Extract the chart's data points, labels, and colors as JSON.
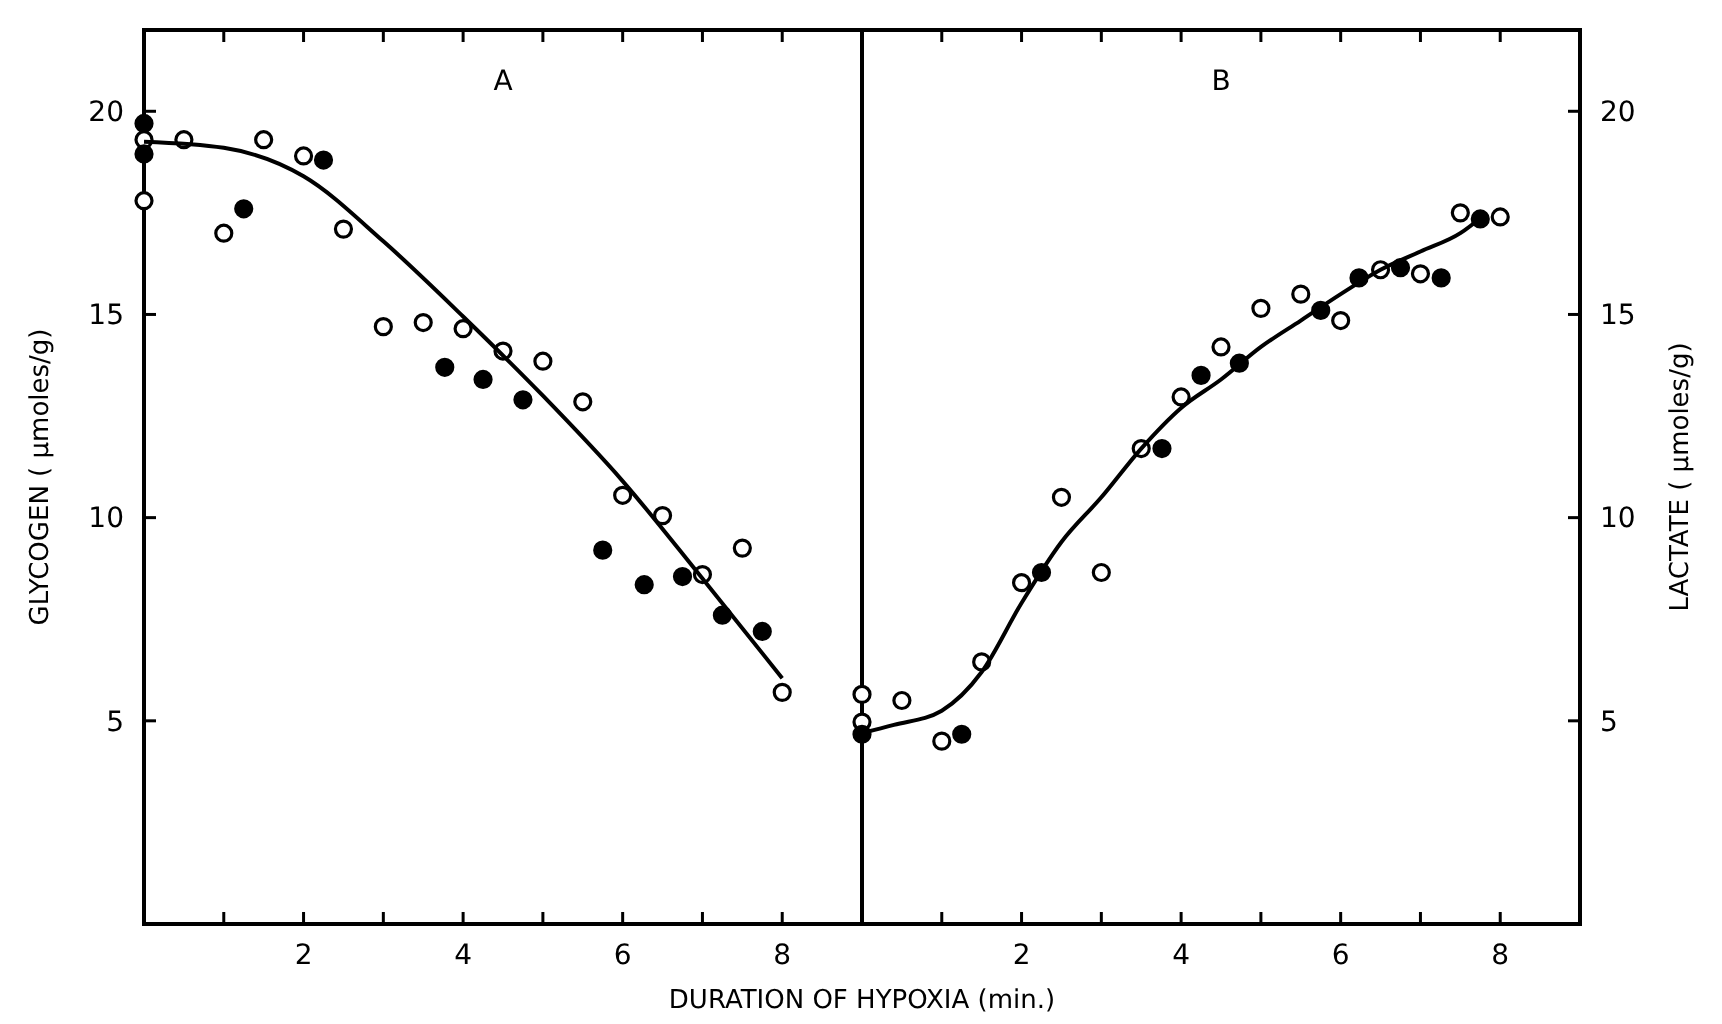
{
  "chart_data": [
    {
      "type": "scatter",
      "xlabel": "DURATION OF HYPOXIA (min.)",
      "ylabel": "GLYCOGEN ( µmoles/g)",
      "annotations": [
        "A"
      ],
      "xlim": [
        0,
        9
      ],
      "xticks": [
        {
          "value": 1,
          "label": null
        },
        2,
        {
          "value": 3,
          "label": null
        },
        4,
        {
          "value": 5,
          "label": null
        },
        6,
        {
          "value": 7,
          "label": null
        },
        8
      ],
      "ylim": [
        0,
        22
      ],
      "yticks": [
        5,
        10,
        15,
        20
      ],
      "series": [
        {
          "color": "#ffffff",
          "marker": "circle",
          "x": [
            0,
            0,
            0.5,
            1,
            1.5,
            2,
            2.5,
            3,
            3.5,
            4,
            4.5,
            5,
            5.5,
            6,
            6.5,
            7,
            7.5,
            8
          ],
          "values": [
            19.3,
            17.8,
            19.3,
            17,
            19.3,
            18.9,
            17.1,
            14.7,
            14.8,
            14.65,
            14.1,
            13.85,
            12.85,
            10.55,
            10.05,
            8.6,
            9.25,
            5.7
          ]
        },
        {
          "color": "#000000",
          "marker": "circle",
          "x": [
            0,
            0,
            1.25,
            2.25,
            3.77,
            4.25,
            4.75,
            5.75,
            6.27,
            6.75,
            7.25,
            7.75
          ],
          "values": [
            19.7,
            18.95,
            17.6,
            18.8,
            13.7,
            13.4,
            12.9,
            9.2,
            8.35,
            8.55,
            7.6,
            7.2
          ]
        },
        {
          "type": "line",
          "color": "#000000",
          "x": [
            0,
            1,
            2,
            3,
            4,
            5,
            6,
            7,
            8
          ],
          "values": [
            19.25,
            19.1,
            18.4,
            16.8,
            14.95,
            13,
            10.9,
            8.5,
            6.05
          ]
        }
      ]
    },
    {
      "type": "scatter",
      "y2label": "LACTATE ( µmoles/g)",
      "annotations": [
        "B"
      ],
      "xlim": [
        0,
        9
      ],
      "xticks": [
        {
          "value": 1,
          "label": null
        },
        2,
        {
          "value": 3,
          "label": null
        },
        4,
        {
          "value": 5,
          "label": null
        },
        6,
        {
          "value": 7,
          "label": null
        },
        8
      ],
      "y2lim": [
        0,
        22
      ],
      "y2ticks": [
        5,
        10,
        15,
        20
      ],
      "series": [
        {
          "color": "#ffffff",
          "marker": "circle",
          "axis": "y2",
          "x": [
            0,
            0,
            0.5,
            1,
            1.5,
            2,
            2.5,
            3,
            3.5,
            4,
            4.5,
            5,
            5.5,
            6,
            6.5,
            7,
            7.5,
            8
          ],
          "values": [
            5.65,
            4.97,
            5.5,
            4.5,
            6.45,
            8.4,
            10.5,
            8.65,
            11.7,
            12.97,
            14.2,
            15.15,
            15.5,
            14.85,
            16.1,
            16,
            17.5,
            17.4
          ]
        },
        {
          "color": "#000000",
          "marker": "circle",
          "axis": "y2",
          "x": [
            0,
            1.25,
            2.25,
            3.76,
            4.25,
            4.73,
            5.75,
            6.23,
            6.75,
            7.26,
            7.75
          ],
          "values": [
            4.67,
            4.67,
            8.65,
            11.7,
            13.5,
            13.8,
            15.1,
            15.9,
            16.15,
            15.9,
            17.35
          ]
        },
        {
          "type": "line",
          "color": "#000000",
          "axis": "y2",
          "x": [
            0,
            0.4,
            1,
            1.5,
            2,
            2.5,
            3,
            3.5,
            4,
            4.5,
            5,
            5.5,
            6,
            6.5,
            7,
            7.5,
            7.77
          ],
          "values": [
            4.7,
            4.9,
            5.25,
            6.2,
            7.9,
            9.4,
            10.5,
            11.7,
            12.7,
            13.4,
            14.2,
            14.85,
            15.5,
            16.1,
            16.55,
            17,
            17.4
          ]
        }
      ]
    }
  ]
}
